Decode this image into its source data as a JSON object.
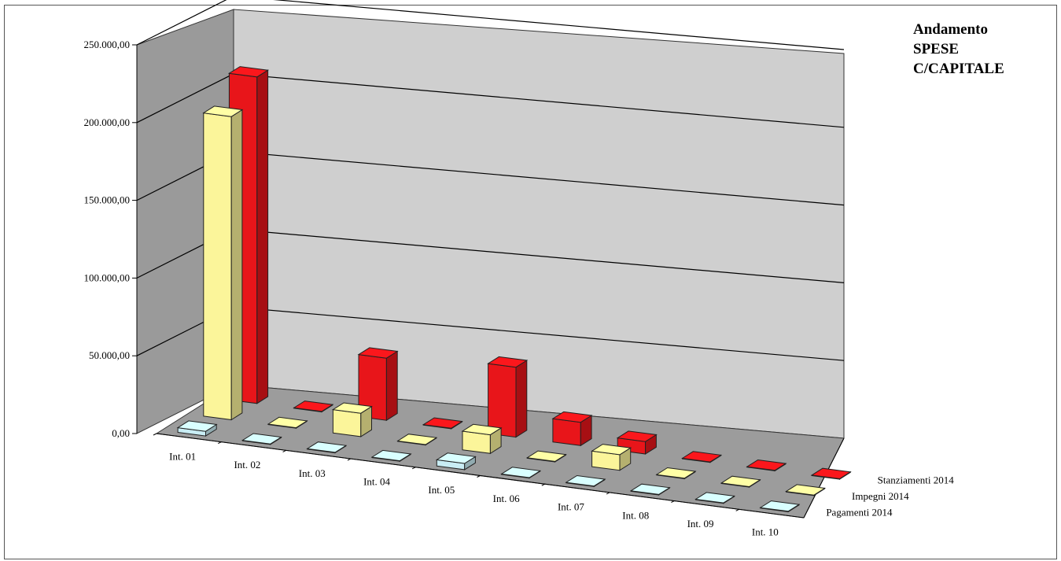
{
  "chart_data": {
    "type": "bar",
    "title": [
      "Andamento",
      "SPESE",
      "C/CAPITALE"
    ],
    "categories": [
      "Int. 01",
      "Int. 02",
      "Int. 03",
      "Int. 04",
      "Int. 05",
      "Int. 06",
      "Int. 07",
      "Int. 08",
      "Int. 09",
      "Int. 10"
    ],
    "y_ticks": [
      "0,00",
      "50.000,00",
      "100.000,00",
      "150.000,00",
      "200.000,00",
      "250.000,00"
    ],
    "ylim": [
      0,
      250000
    ],
    "grid": true,
    "legend_placement": "right",
    "series": [
      {
        "name": "Stanziamenti 2014",
        "color": "#e8151a",
        "values": [
          210000,
          0,
          40000,
          0,
          45000,
          15000,
          8000,
          0,
          0,
          0
        ]
      },
      {
        "name": "Impegni 2014",
        "color": "#fbf59a",
        "values": [
          195000,
          0,
          15000,
          0,
          12000,
          0,
          10000,
          0,
          0,
          0
        ]
      },
      {
        "name": "Pagamenti 2014",
        "color": "#c9edf4",
        "values": [
          3000,
          0,
          0,
          0,
          4000,
          0,
          0,
          0,
          0,
          0
        ]
      }
    ]
  }
}
